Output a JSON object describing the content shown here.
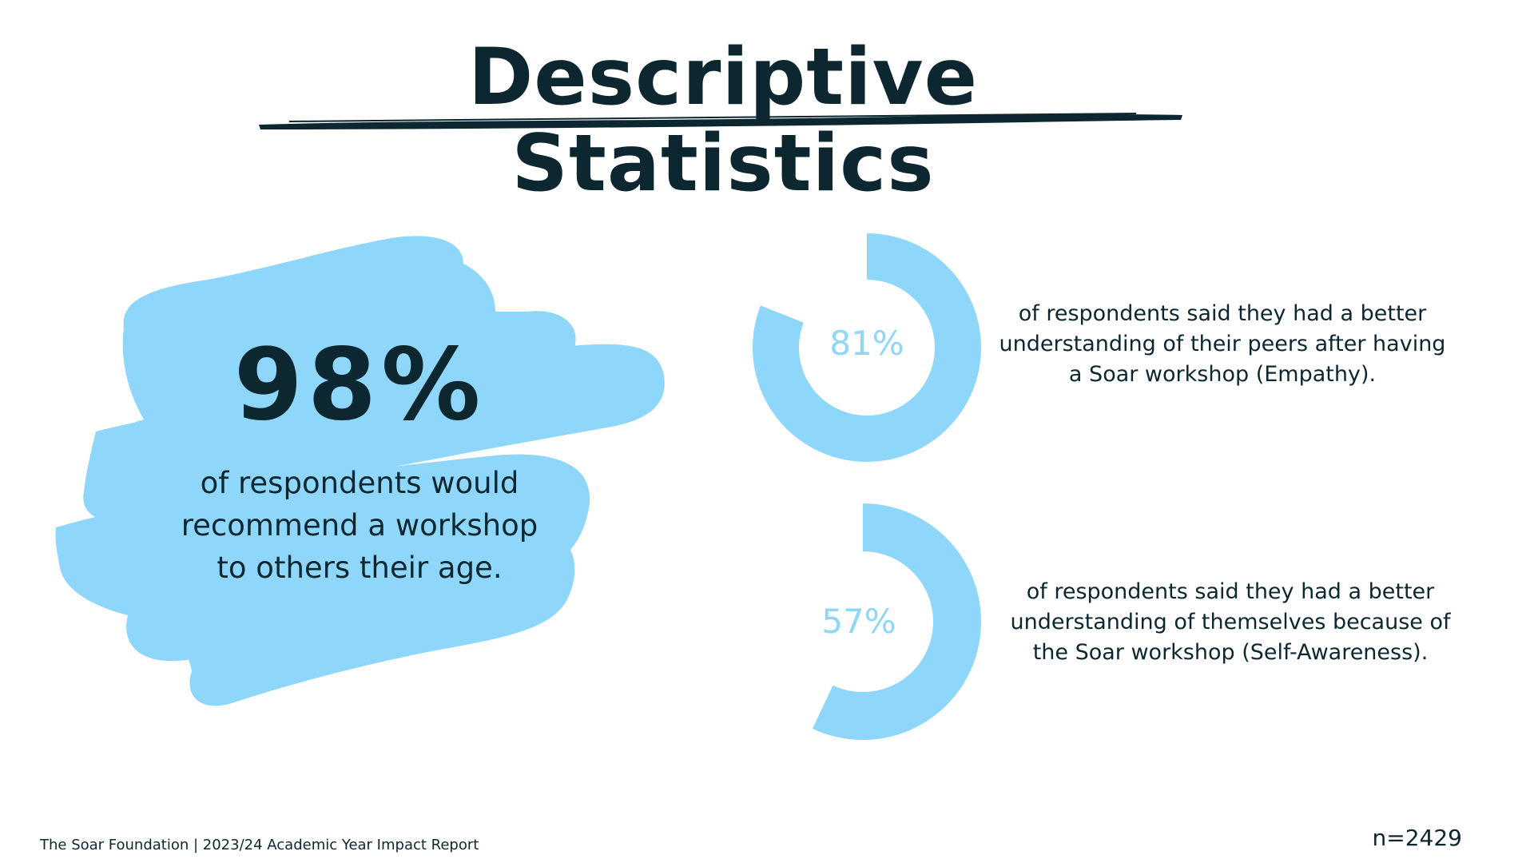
{
  "title": "Descriptive Statistics",
  "colors": {
    "accent": "#8fd7fa",
    "text": "#0c2730",
    "background": "#ffffff"
  },
  "headline_stat": {
    "value": "98%",
    "description": [
      "of respondents would",
      "recommend a workshop",
      "to others their age."
    ]
  },
  "chart_data": [
    {
      "type": "pie",
      "variant": "donut",
      "value": 81,
      "label": "81%",
      "description": [
        "of respondents said they had a better",
        "understanding of their peers after having",
        "a Soar workshop (Empathy)."
      ]
    },
    {
      "type": "pie",
      "variant": "donut",
      "value": 57,
      "label": "57%",
      "description": [
        "of respondents said they had a better",
        "understanding of themselves because of",
        "the Soar workshop (Self-Awareness)."
      ]
    }
  ],
  "footer": {
    "source": "The Soar Foundation | 2023/24 Academic Year Impact Report",
    "sample_size": "n=2429"
  }
}
